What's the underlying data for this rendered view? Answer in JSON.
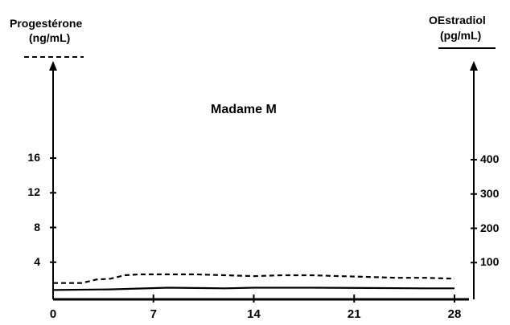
{
  "chart_data": {
    "type": "line",
    "title": "Madame M",
    "xlabel": "",
    "x_ticks": [
      "0",
      "7",
      "14",
      "21",
      "28"
    ],
    "xlim": [
      0,
      28
    ],
    "left_axis": {
      "label_line1": "Progestérone",
      "label_line2": "(ng/mL)",
      "ticks": [
        "4",
        "8",
        "12",
        "16"
      ],
      "ylim": [
        0,
        20
      ],
      "line_style": "dashed"
    },
    "right_axis": {
      "label_line1": "OEstradiol",
      "label_line2": "(pg/mL)",
      "ticks": [
        "100",
        "200",
        "300",
        "400"
      ],
      "ylim": [
        0,
        500
      ],
      "line_style": "solid"
    },
    "series": [
      {
        "axis": "left",
        "style": "dashed",
        "x": [
          0,
          2,
          3,
          4,
          5,
          6,
          8,
          10,
          12,
          14,
          16,
          18,
          20,
          22,
          24,
          26,
          28
        ],
        "y": [
          1.6,
          1.6,
          2.0,
          2.1,
          2.5,
          2.6,
          2.6,
          2.6,
          2.5,
          2.4,
          2.5,
          2.5,
          2.4,
          2.3,
          2.2,
          2.2,
          2.1
        ]
      },
      {
        "axis": "right",
        "style": "solid",
        "x": [
          0,
          4,
          8,
          12,
          14,
          18,
          22,
          26,
          28
        ],
        "y": [
          20,
          22,
          27,
          25,
          27,
          27,
          26,
          25,
          25
        ]
      }
    ],
    "colors": {
      "line": "#000000"
    },
    "grid": false
  }
}
